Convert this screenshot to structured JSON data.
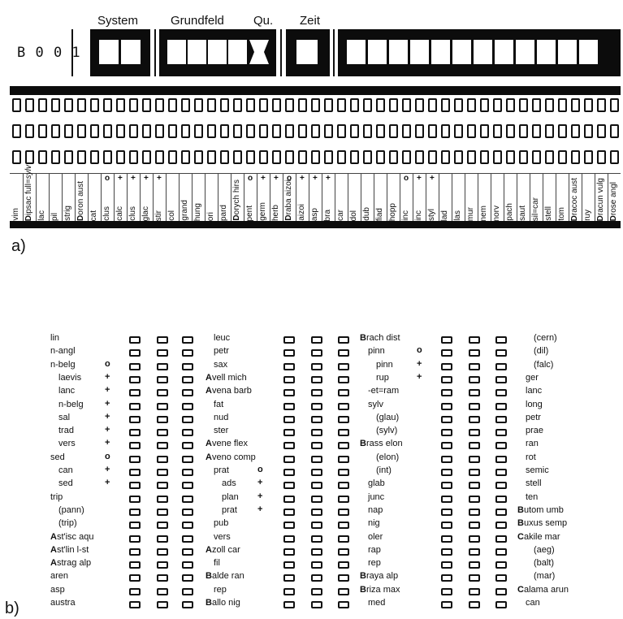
{
  "header": {
    "system_label": "System",
    "grundfeld_label": "Grundfeld",
    "qu_label": "Qu.",
    "zeit_label": "Zeit",
    "code": "B 0 0 1"
  },
  "panel_a": {
    "label": "a)",
    "columns": [
      {
        "text": "vim",
        "lead": "",
        "mark": ""
      },
      {
        "text": "ipsac full=",
        "lead": "D",
        "italic": "sylv",
        "mark": ""
      },
      {
        "text": "lac",
        "lead": "",
        "mark": ""
      },
      {
        "text": "pil",
        "lead": "",
        "mark": ""
      },
      {
        "text": "strig",
        "lead": "",
        "mark": ""
      },
      {
        "text": "oron aust",
        "lead": "D",
        "mark": ""
      },
      {
        "text": "cat",
        "lead": "",
        "mark": ""
      },
      {
        "text": "clus",
        "lead": "",
        "mark": "o"
      },
      {
        "text": "calc",
        "lead": "",
        "mark": "+"
      },
      {
        "text": "clus",
        "lead": "",
        "mark": "+"
      },
      {
        "text": "glac",
        "lead": "",
        "mark": "+"
      },
      {
        "text": "stir",
        "lead": "",
        "mark": "+"
      },
      {
        "text": "col",
        "lead": "",
        "mark": ""
      },
      {
        "text": "grand",
        "lead": "",
        "mark": ""
      },
      {
        "text": "hung",
        "lead": "",
        "mark": ""
      },
      {
        "text": "ori",
        "lead": "",
        "mark": ""
      },
      {
        "text": "pard",
        "lead": "",
        "mark": ""
      },
      {
        "text": "orych hirs",
        "lead": "D",
        "mark": ""
      },
      {
        "text": "pent",
        "lead": "",
        "mark": "o"
      },
      {
        "text": "germ",
        "lead": "",
        "mark": "+"
      },
      {
        "text": "herb",
        "lead": "",
        "mark": "+"
      },
      {
        "text": "raba aizoi",
        "lead": "D",
        "mark": "o"
      },
      {
        "text": "aizoi",
        "lead": "",
        "mark": "+"
      },
      {
        "text": "asp",
        "lead": "",
        "mark": "+"
      },
      {
        "text": "bra",
        "lead": "",
        "mark": "+"
      },
      {
        "text": "car",
        "lead": "",
        "mark": ""
      },
      {
        "text": "dol",
        "lead": "",
        "mark": ""
      },
      {
        "text": "dub",
        "lead": "",
        "mark": ""
      },
      {
        "text": "fiad",
        "lead": "",
        "mark": ""
      },
      {
        "text": "hopp",
        "lead": "",
        "mark": ""
      },
      {
        "text": "inc",
        "lead": "",
        "mark": "o"
      },
      {
        "text": "inc",
        "lead": "",
        "mark": "+"
      },
      {
        "text": "styl",
        "lead": "",
        "mark": "+"
      },
      {
        "text": "lad",
        "lead": "",
        "mark": ""
      },
      {
        "text": "las",
        "lead": "",
        "mark": ""
      },
      {
        "text": "mur",
        "lead": "",
        "mark": ""
      },
      {
        "text": "nem",
        "lead": "",
        "mark": ""
      },
      {
        "text": "norv",
        "lead": "",
        "mark": ""
      },
      {
        "text": "pach",
        "lead": "",
        "mark": ""
      },
      {
        "text": "saut",
        "lead": "",
        "mark": ""
      },
      {
        "text": "sil=car",
        "lead": "",
        "mark": ""
      },
      {
        "text": "stell",
        "lead": "",
        "mark": ""
      },
      {
        "text": "tom",
        "lead": "",
        "mark": ""
      },
      {
        "text": "racoc aust",
        "lead": "D",
        "mark": ""
      },
      {
        "text": "ruy",
        "lead": "",
        "mark": ""
      },
      {
        "text": "racun vulg",
        "lead": "D",
        "mark": ""
      },
      {
        "text": "rose angl",
        "lead": "D",
        "mark": ""
      }
    ]
  },
  "panel_b": {
    "label": "b)",
    "col1": [
      {
        "name": "lin",
        "ind": 0,
        "sym": ""
      },
      {
        "name": "n-angl",
        "ind": 0,
        "sym": ""
      },
      {
        "name": "n-belg",
        "ind": 0,
        "sym": "o"
      },
      {
        "name": "laevis",
        "ind": 1,
        "sym": "+"
      },
      {
        "name": "lanc",
        "ind": 1,
        "sym": "+"
      },
      {
        "name": "n-belg",
        "ind": 1,
        "sym": "+"
      },
      {
        "name": "sal",
        "ind": 1,
        "sym": "+"
      },
      {
        "name": "trad",
        "ind": 1,
        "sym": "+"
      },
      {
        "name": "vers",
        "ind": 1,
        "sym": "+"
      },
      {
        "name": "sed",
        "ind": 0,
        "sym": "o"
      },
      {
        "name": "can",
        "ind": 1,
        "sym": "+"
      },
      {
        "name": "sed",
        "ind": 1,
        "sym": "+"
      },
      {
        "name": "trip",
        "ind": 0,
        "sym": ""
      },
      {
        "name": "(pann)",
        "ind": 1,
        "sym": ""
      },
      {
        "name": "(trip)",
        "ind": 1,
        "sym": ""
      },
      {
        "name": "st'isc aqu",
        "lead": "A",
        "ind": 0,
        "sym": ""
      },
      {
        "name": "st'lin l-st",
        "lead": "A",
        "ind": 0,
        "sym": ""
      },
      {
        "name": "strag alp",
        "lead": "A",
        "ind": 0,
        "sym": ""
      },
      {
        "name": "aren",
        "ind": 0,
        "sym": ""
      },
      {
        "name": "asp",
        "ind": 0,
        "sym": ""
      },
      {
        "name": "austra",
        "ind": 0,
        "sym": ""
      }
    ],
    "col2": [
      {
        "name": "leuc",
        "ind": 1,
        "sym": ""
      },
      {
        "name": "petr",
        "ind": 1,
        "sym": ""
      },
      {
        "name": "sax",
        "ind": 1,
        "sym": ""
      },
      {
        "name": "vell mich",
        "lead": "A",
        "ind": 0,
        "sym": ""
      },
      {
        "name": "vena barb",
        "lead": "A",
        "ind": 0,
        "sym": ""
      },
      {
        "name": "fat",
        "ind": 1,
        "sym": ""
      },
      {
        "name": "nud",
        "ind": 1,
        "sym": ""
      },
      {
        "name": "ster",
        "ind": 1,
        "sym": ""
      },
      {
        "name": "vene flex",
        "lead": "A",
        "ind": 0,
        "sym": ""
      },
      {
        "name": "veno comp",
        "lead": "A",
        "ind": 0,
        "sym": ""
      },
      {
        "name": "prat",
        "ind": 1,
        "sym": "o"
      },
      {
        "name": "ads",
        "ind": 2,
        "sym": "+"
      },
      {
        "name": "plan",
        "ind": 2,
        "sym": "+"
      },
      {
        "name": "prat",
        "ind": 2,
        "sym": "+"
      },
      {
        "name": "pub",
        "ind": 1,
        "sym": ""
      },
      {
        "name": "vers",
        "ind": 1,
        "sym": ""
      },
      {
        "name": "zoll car",
        "lead": "A",
        "ind": 0,
        "sym": ""
      },
      {
        "name": "fil",
        "ind": 1,
        "sym": ""
      },
      {
        "name": "alde ran",
        "lead": "B",
        "ind": 0,
        "sym": ""
      },
      {
        "name": "rep",
        "ind": 1,
        "sym": ""
      },
      {
        "name": "allo nig",
        "lead": "B",
        "ind": 0,
        "sym": ""
      }
    ],
    "col3": [
      {
        "name": "rach dist",
        "lead": "B",
        "ind": 0,
        "sym": ""
      },
      {
        "name": "pinn",
        "ind": 1,
        "sym": "o"
      },
      {
        "name": "pinn",
        "ind": 2,
        "sym": "+"
      },
      {
        "name": "rup",
        "ind": 2,
        "sym": "+"
      },
      {
        "name": "-et=ram",
        "ind": 1,
        "sym": ""
      },
      {
        "name": "sylv",
        "ind": 1,
        "sym": ""
      },
      {
        "name": "(glau)",
        "ind": 2,
        "sym": ""
      },
      {
        "name": "(sylv)",
        "ind": 2,
        "sym": ""
      },
      {
        "name": "rass elon",
        "lead": "B",
        "ind": 0,
        "sym": ""
      },
      {
        "name": "(elon)",
        "ind": 2,
        "sym": ""
      },
      {
        "name": "(int)",
        "ind": 2,
        "sym": ""
      },
      {
        "name": "glab",
        "ind": 1,
        "sym": ""
      },
      {
        "name": "junc",
        "ind": 1,
        "sym": ""
      },
      {
        "name": "nap",
        "ind": 1,
        "sym": ""
      },
      {
        "name": "nig",
        "ind": 1,
        "sym": ""
      },
      {
        "name": "oler",
        "ind": 1,
        "sym": ""
      },
      {
        "name": "rap",
        "ind": 1,
        "sym": ""
      },
      {
        "name": "rep",
        "ind": 1,
        "sym": ""
      },
      {
        "name": "raya alp",
        "lead": "B",
        "ind": 0,
        "sym": ""
      },
      {
        "name": "riza max",
        "lead": "B",
        "ind": 0,
        "sym": ""
      },
      {
        "name": "med",
        "ind": 1,
        "sym": ""
      }
    ],
    "col4": [
      {
        "name": "(cern)",
        "ind": 2,
        "sym": ""
      },
      {
        "name": "(dil)",
        "ind": 2,
        "sym": ""
      },
      {
        "name": "(falc)",
        "ind": 2,
        "sym": ""
      },
      {
        "name": "ger",
        "ind": 1,
        "sym": ""
      },
      {
        "name": "lanc",
        "ind": 1,
        "sym": ""
      },
      {
        "name": "long",
        "ind": 1,
        "sym": ""
      },
      {
        "name": "petr",
        "ind": 1,
        "sym": ""
      },
      {
        "name": "prae",
        "ind": 1,
        "sym": ""
      },
      {
        "name": "ran",
        "ind": 1,
        "sym": ""
      },
      {
        "name": "rot",
        "ind": 1,
        "sym": ""
      },
      {
        "name": "semic",
        "ind": 1,
        "sym": ""
      },
      {
        "name": "stell",
        "ind": 1,
        "sym": ""
      },
      {
        "name": "ten",
        "ind": 1,
        "sym": ""
      },
      {
        "name": "utom umb",
        "lead": "B",
        "ind": 0,
        "sym": ""
      },
      {
        "name": "uxus semp",
        "lead": "B",
        "ind": 0,
        "sym": ""
      },
      {
        "name": "akile mar",
        "lead": "C",
        "ind": 0,
        "sym": ""
      },
      {
        "name": "(aeg)",
        "ind": 2,
        "sym": ""
      },
      {
        "name": "(balt)",
        "ind": 2,
        "sym": ""
      },
      {
        "name": "(mar)",
        "ind": 2,
        "sym": ""
      },
      {
        "name": "alama arun",
        "lead": "C",
        "ind": 0,
        "sym": ""
      },
      {
        "name": "can",
        "ind": 1,
        "sym": ""
      }
    ]
  }
}
